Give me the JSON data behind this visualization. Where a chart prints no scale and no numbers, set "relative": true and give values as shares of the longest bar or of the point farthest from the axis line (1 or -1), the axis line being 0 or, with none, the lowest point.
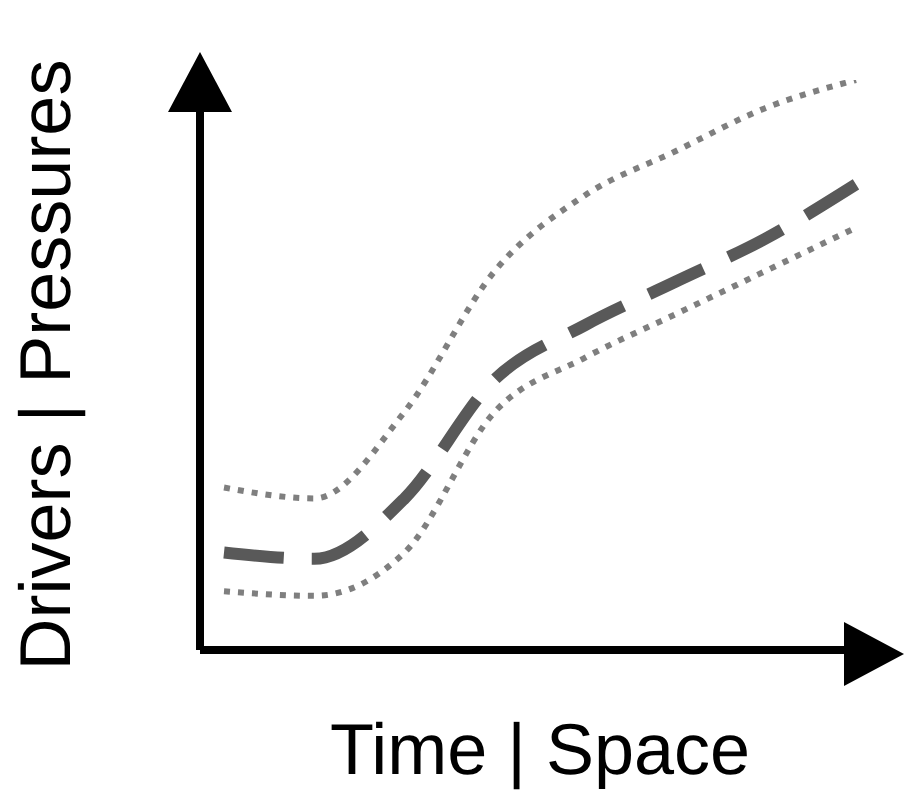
{
  "chart_data": {
    "type": "line",
    "relative": true,
    "xlabel": "Time | Space",
    "ylabel": "Drivers | Pressures",
    "categories": [
      null,
      null,
      null,
      null,
      null,
      null,
      null,
      null
    ],
    "legend": false,
    "grid": false,
    "marker": "none",
    "series": [
      {
        "color": "#7f7f7f",
        "line_style": "dotted",
        "values": [
          0.285,
          0.266,
          0.418,
          0.665,
          0.798,
          0.875,
          0.951,
          1
        ]
      },
      {
        "color": "#595959",
        "line_style": "dashed",
        "values": [
          0.171,
          0.16,
          0.266,
          0.475,
          0.57,
          0.646,
          0.722,
          0.817
        ]
      },
      {
        "color": "#7f7f7f",
        "line_style": "dotted",
        "values": [
          0.103,
          0.095,
          0.171,
          0.418,
          0.513,
          0.589,
          0.665,
          0.741
        ]
      }
    ]
  }
}
